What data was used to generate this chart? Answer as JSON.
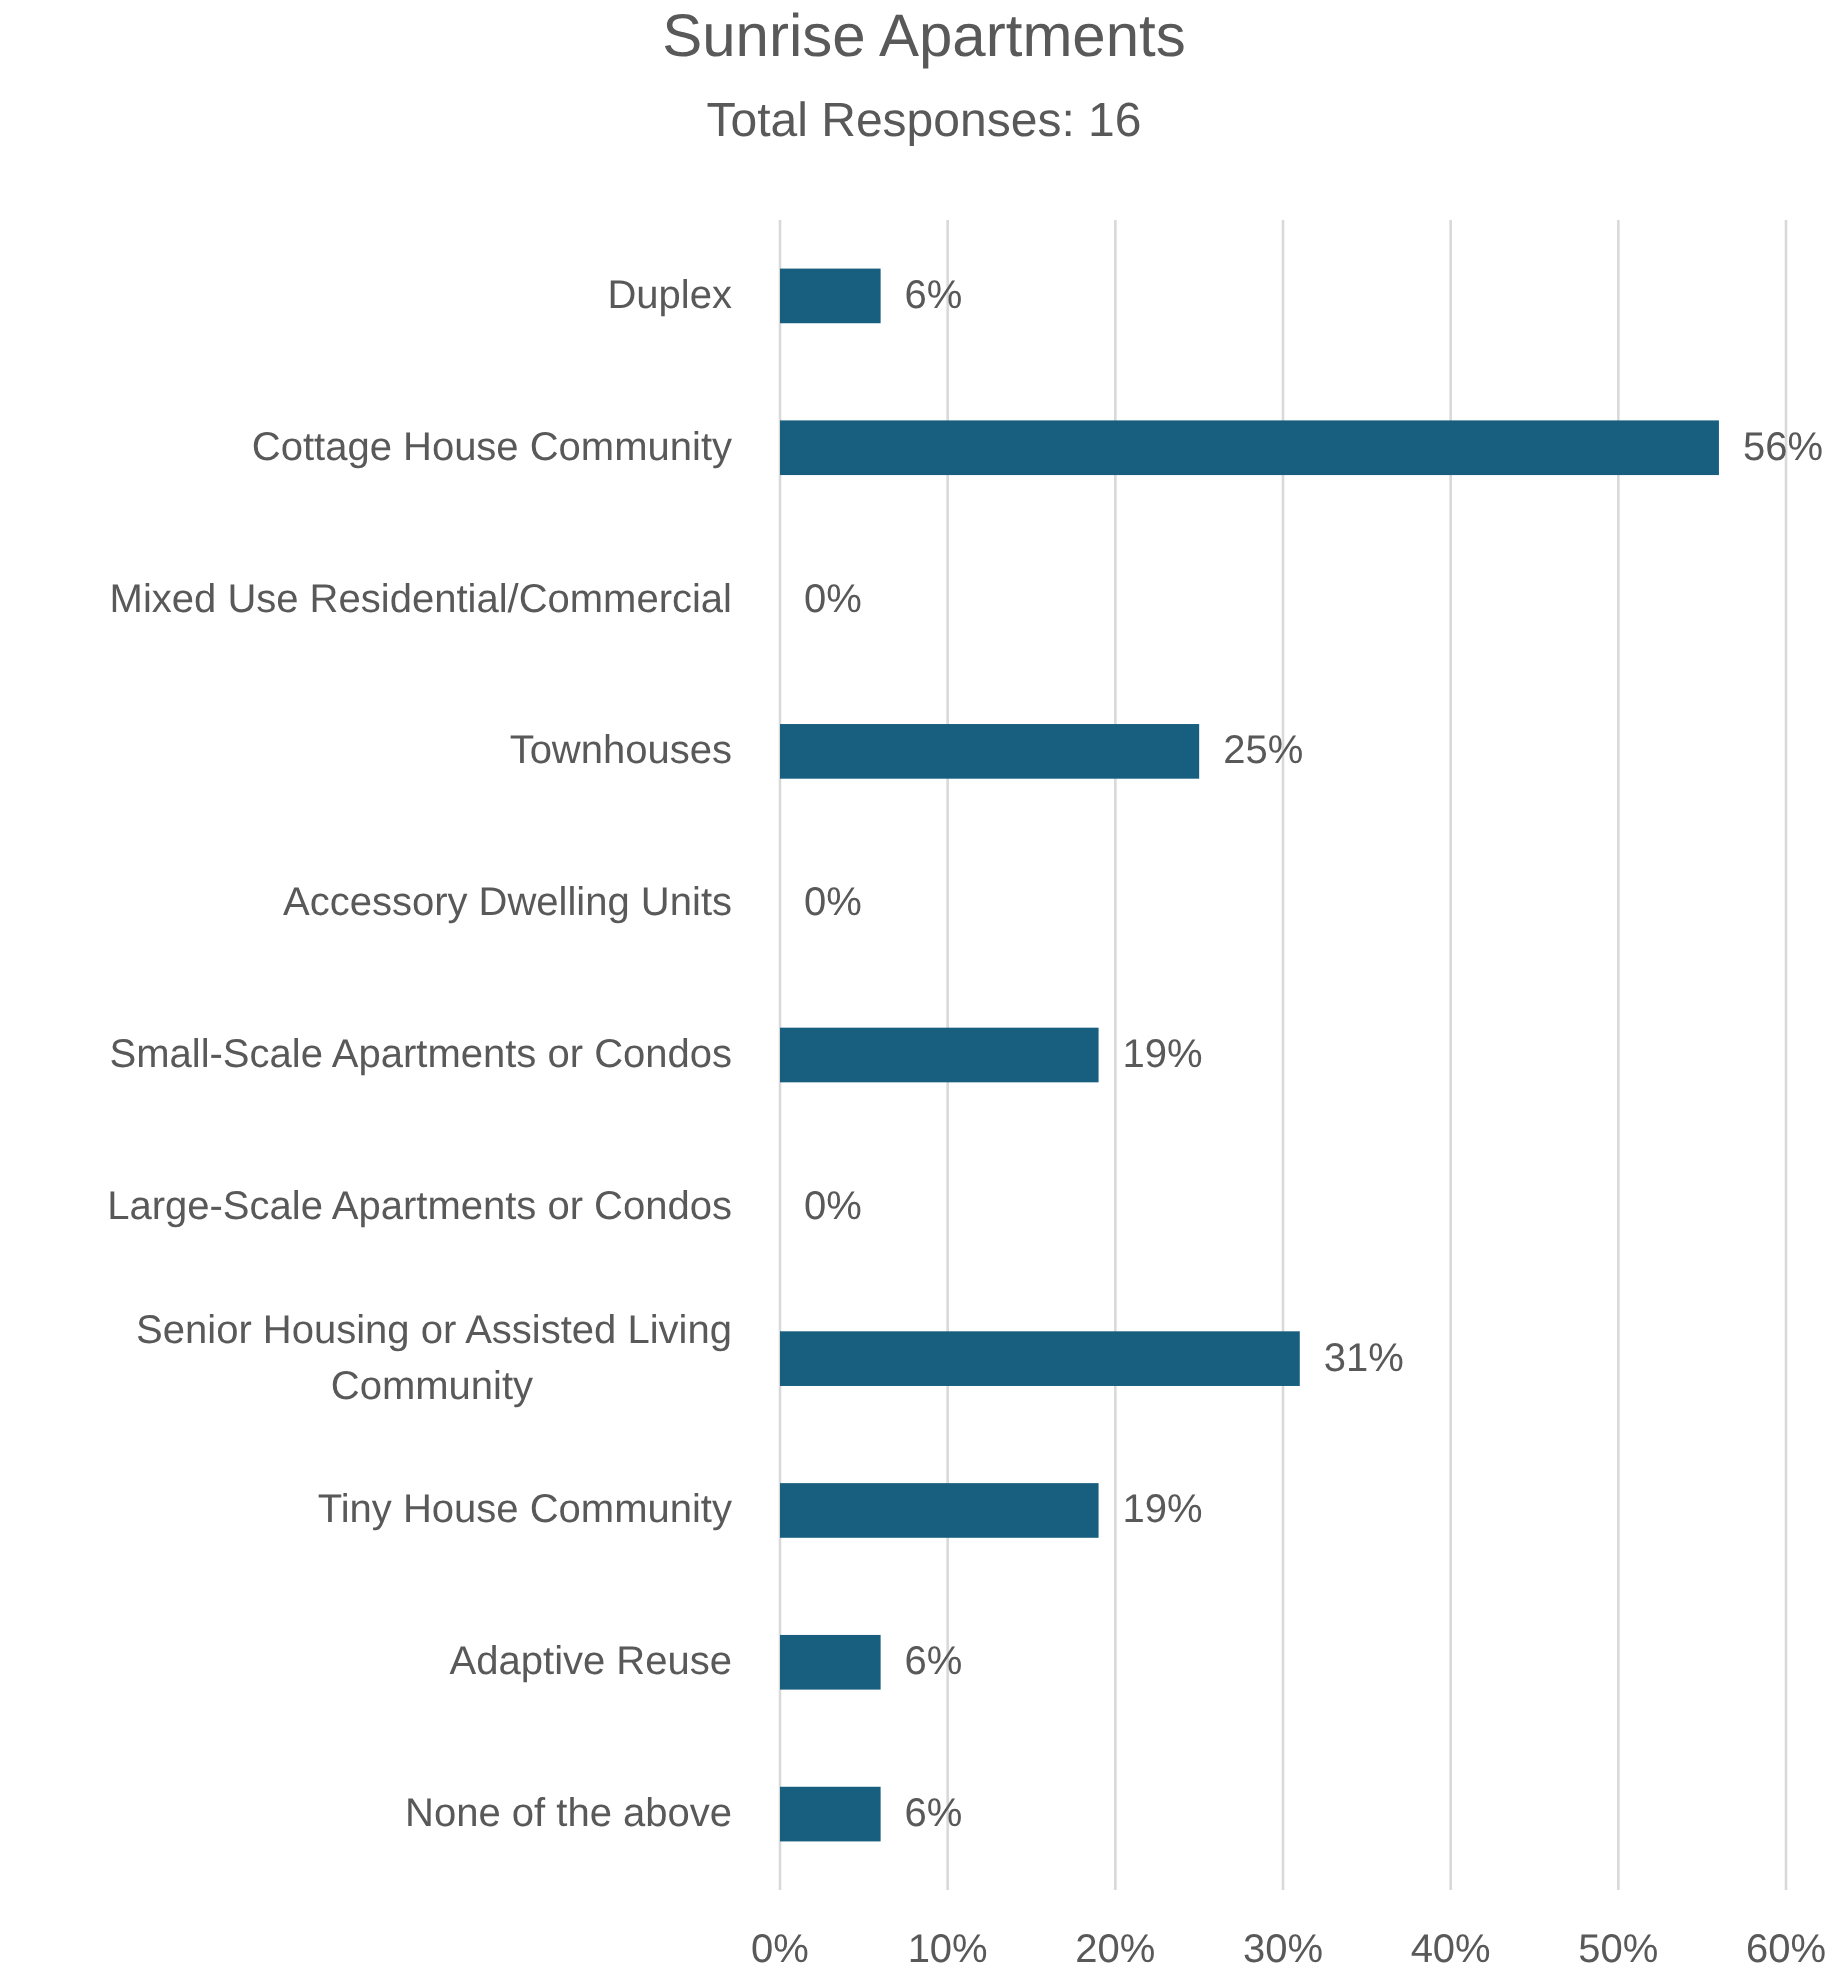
{
  "chart_data": {
    "type": "bar",
    "orientation": "horizontal",
    "title": "Sunrise Apartments",
    "subtitle": "Total Responses: 16",
    "categories": [
      "Duplex",
      "Cottage House Community",
      "Mixed Use Residential/Commercial",
      "Townhouses",
      "Accessory Dwelling Units",
      "Small-Scale Apartments or Condos",
      "Large-Scale Apartments or Condos",
      "Senior Housing or Assisted Living Community",
      "Tiny House Community",
      "Adaptive Reuse",
      "None of the above"
    ],
    "values": [
      6,
      56,
      0,
      25,
      0,
      19,
      0,
      31,
      19,
      6,
      6
    ],
    "value_labels": [
      "6%",
      "56%",
      "0%",
      "25%",
      "0%",
      "19%",
      "0%",
      "31%",
      "19%",
      "6%",
      "6%"
    ],
    "color": "#175e7f",
    "xlim": [
      0,
      60
    ],
    "xticks": [
      {
        "value": 0,
        "label": "0%"
      },
      {
        "value": 10,
        "label": "10%"
      },
      {
        "value": 20,
        "label": "20%"
      },
      {
        "value": 30,
        "label": "30%"
      },
      {
        "value": 40,
        "label": "40%"
      },
      {
        "value": 50,
        "label": "50%"
      },
      {
        "value": 60,
        "label": "60%"
      }
    ],
    "grid": "x"
  }
}
